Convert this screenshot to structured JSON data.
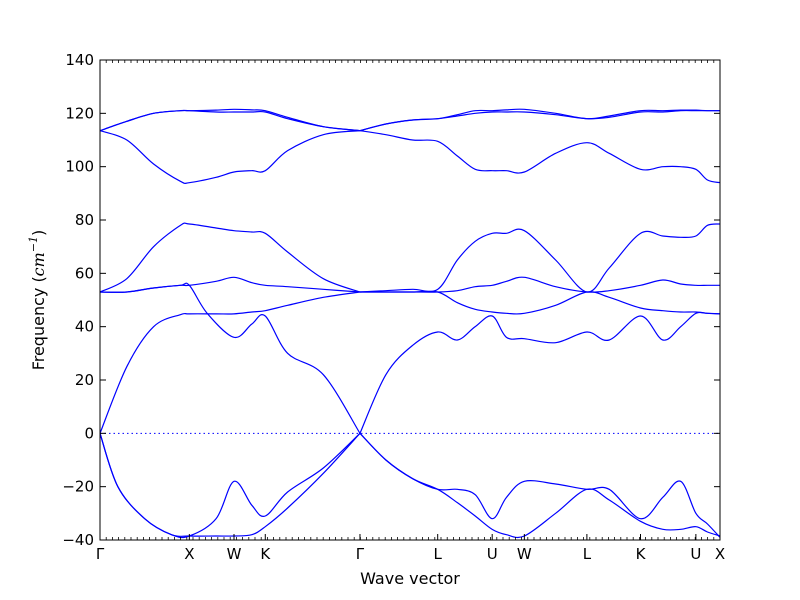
{
  "chart_data": {
    "type": "line",
    "xlabel": "Wave vector",
    "ylabel_text": "Frequency (",
    "ylabel_unit": "cm",
    "ylabel_exp": "−1",
    "ylabel_close": ")",
    "ylim": [
      -40,
      140
    ],
    "yticks": [
      -40,
      -20,
      0,
      20,
      40,
      60,
      80,
      100,
      120,
      140
    ],
    "ytick_labels": [
      "−40",
      "−20",
      "0",
      "20",
      "40",
      "60",
      "80",
      "100",
      "120",
      "140"
    ],
    "xlim": [
      0,
      6.94
    ],
    "high_symmetry_points": [
      {
        "label": "Γ",
        "x": 0.0
      },
      {
        "label": "X",
        "x": 1.0
      },
      {
        "label": "W",
        "x": 1.5
      },
      {
        "label": "K",
        "x": 1.85
      },
      {
        "label": "Γ",
        "x": 2.91
      },
      {
        "label": "L",
        "x": 3.78
      },
      {
        "label": "U",
        "x": 4.39
      },
      {
        "label": "W",
        "x": 4.75
      },
      {
        "label": "L",
        "x": 5.45
      },
      {
        "label": "K",
        "x": 6.05
      },
      {
        "label": "U",
        "x": 6.67
      },
      {
        "label": "X",
        "x": 6.94
      }
    ],
    "zero_line": true,
    "line_color": "#0000ff",
    "zero_line_color": "#0000ff",
    "series": [
      {
        "x": [
          0,
          0.2,
          0.5,
          0.8,
          1.0,
          1.3,
          1.5,
          1.7,
          1.85,
          2.1,
          2.5,
          2.91
        ],
        "values": [
          0,
          -20,
          -32,
          -38,
          -38.5,
          -38.5,
          -38.5,
          -38,
          -35,
          -28,
          -15,
          0
        ]
      },
      {
        "x": [
          2.91,
          3.2,
          3.5,
          3.78,
          4.0,
          4.2,
          4.39,
          4.55,
          4.75,
          5.1,
          5.45,
          5.7,
          6.05,
          6.3,
          6.5,
          6.67,
          6.8,
          6.94
        ],
        "values": [
          0,
          -10,
          -17,
          -21,
          -21,
          -23,
          -32,
          -24,
          -18,
          -19,
          -21,
          -21,
          -32,
          -24,
          -18,
          -30,
          -34,
          -39
        ]
      },
      {
        "x": [
          0,
          0.2,
          0.5,
          0.8,
          1.0,
          1.3,
          1.5,
          1.7,
          1.85,
          2.1,
          2.5,
          2.91
        ],
        "values": [
          0,
          -20,
          -32,
          -38,
          -38.5,
          -32,
          -18,
          -27,
          -31,
          -22,
          -13,
          0
        ]
      },
      {
        "x": [
          2.91,
          3.2,
          3.5,
          3.78,
          4.0,
          4.2,
          4.39,
          4.55,
          4.75,
          5.1,
          5.45,
          5.7,
          6.05,
          6.3,
          6.5,
          6.67,
          6.8,
          6.94
        ],
        "values": [
          0,
          -10,
          -17,
          -21,
          -26,
          -31,
          -36,
          -38,
          -38.5,
          -30,
          -21,
          -25,
          -33,
          -36,
          -36,
          -35,
          -37,
          -38.5
        ]
      },
      {
        "x": [
          0,
          0.3,
          0.6,
          0.9,
          1.0,
          1.3,
          1.5,
          1.7,
          1.85,
          2.1,
          2.5,
          2.91
        ],
        "values": [
          0,
          25,
          40,
          44.5,
          44.8,
          44.8,
          44.8,
          45.5,
          46,
          48,
          51,
          53
        ]
      },
      {
        "x": [
          2.91,
          3.2,
          3.5,
          3.78,
          4.0,
          4.2,
          4.39,
          4.55,
          4.75,
          5.1,
          5.45,
          5.7,
          6.05,
          6.3,
          6.5,
          6.67,
          6.8,
          6.94
        ],
        "values": [
          53,
          53,
          53,
          53,
          49,
          46.5,
          45.5,
          45,
          45,
          48,
          53,
          51,
          47,
          46,
          45.5,
          45.5,
          45,
          44.8
        ]
      },
      {
        "x": [
          0,
          0.3,
          0.6,
          0.9,
          1.0,
          1.2,
          1.5,
          1.7,
          1.85,
          2.1,
          2.5,
          2.91
        ],
        "values": [
          53,
          53,
          54.5,
          55.5,
          55.5,
          45,
          36,
          41,
          44,
          30,
          22,
          0
        ]
      },
      {
        "x": [
          2.91,
          3.2,
          3.5,
          3.78,
          4.0,
          4.2,
          4.39,
          4.55,
          4.75,
          5.1,
          5.45,
          5.7,
          6.05,
          6.3,
          6.5,
          6.67,
          6.8,
          6.94
        ],
        "values": [
          0,
          22,
          33,
          38,
          35,
          40,
          44,
          36,
          35.5,
          34,
          38,
          35,
          44,
          35,
          40,
          45,
          45,
          44.8
        ]
      },
      {
        "x": [
          0,
          0.3,
          0.6,
          0.9,
          1.0,
          1.3,
          1.5,
          1.7,
          1.85,
          2.1,
          2.5,
          2.91
        ],
        "values": [
          53,
          53,
          54.5,
          55.5,
          55.5,
          57,
          58.5,
          56.5,
          55.5,
          55,
          54,
          53
        ]
      },
      {
        "x": [
          2.91,
          3.2,
          3.5,
          3.78,
          4.0,
          4.2,
          4.39,
          4.55,
          4.75,
          5.1,
          5.45,
          5.7,
          6.05,
          6.3,
          6.5,
          6.67,
          6.8,
          6.94
        ],
        "values": [
          53,
          53,
          53,
          53,
          53.5,
          55,
          55.5,
          57,
          58.5,
          55,
          53,
          53.5,
          55.5,
          57.5,
          56,
          55.5,
          55.5,
          55.5
        ]
      },
      {
        "x": [
          0,
          0.3,
          0.6,
          0.9,
          1.0,
          1.3,
          1.5,
          1.7,
          1.85,
          2.1,
          2.5,
          2.91
        ],
        "values": [
          53,
          58,
          70,
          78,
          78.5,
          77,
          76,
          75.5,
          75,
          68,
          58,
          53
        ]
      },
      {
        "x": [
          2.91,
          3.2,
          3.5,
          3.78,
          4.0,
          4.2,
          4.39,
          4.55,
          4.75,
          5.1,
          5.45,
          5.7,
          6.05,
          6.3,
          6.5,
          6.67,
          6.8,
          6.94
        ],
        "values": [
          53,
          53.5,
          54,
          54,
          65,
          72,
          75,
          75,
          76,
          65,
          53,
          62,
          75,
          74,
          73.5,
          74,
          78,
          78.5
        ]
      },
      {
        "x": [
          0,
          0.3,
          0.6,
          0.9,
          1.0,
          1.3,
          1.5,
          1.7,
          1.85,
          2.1,
          2.5,
          2.91
        ],
        "values": [
          113.5,
          110,
          101,
          94.5,
          94,
          96,
          98,
          98.5,
          98.5,
          106,
          112,
          113.5
        ]
      },
      {
        "x": [
          2.91,
          3.2,
          3.5,
          3.78,
          4.0,
          4.2,
          4.39,
          4.55,
          4.75,
          5.1,
          5.45,
          5.7,
          6.05,
          6.3,
          6.5,
          6.67,
          6.8,
          6.94
        ],
        "values": [
          113.5,
          112,
          110,
          109.5,
          104,
          99,
          98.5,
          98.5,
          98,
          105,
          109,
          105,
          99,
          100,
          100,
          99,
          95,
          94
        ]
      },
      {
        "x": [
          0,
          0.3,
          0.6,
          0.9,
          1.0,
          1.3,
          1.5,
          1.7,
          1.85,
          2.1,
          2.5,
          2.91
        ],
        "values": [
          113.5,
          117,
          120,
          121,
          121,
          120.5,
          120.5,
          120.5,
          120.5,
          118,
          115,
          113.5
        ]
      },
      {
        "x": [
          2.91,
          3.2,
          3.5,
          3.78,
          4.0,
          4.2,
          4.39,
          4.55,
          4.75,
          5.1,
          5.45,
          5.7,
          6.05,
          6.3,
          6.5,
          6.67,
          6.8,
          6.94
        ],
        "values": [
          113.5,
          116,
          117.5,
          118,
          119,
          120,
          120.5,
          120.5,
          120.5,
          119.5,
          118,
          118.5,
          120.5,
          120.5,
          121,
          121,
          121,
          121
        ]
      },
      {
        "x": [
          0,
          0.3,
          0.6,
          0.9,
          1.0,
          1.3,
          1.5,
          1.7,
          1.85,
          2.1,
          2.5,
          2.91
        ],
        "values": [
          113.5,
          117,
          120,
          121,
          121,
          121.2,
          121.5,
          121.3,
          121,
          118.5,
          115,
          113.5
        ]
      },
      {
        "x": [
          2.91,
          3.2,
          3.5,
          3.78,
          4.0,
          4.2,
          4.39,
          4.55,
          4.75,
          5.1,
          5.45,
          5.7,
          6.05,
          6.3,
          6.5,
          6.67,
          6.8,
          6.94
        ],
        "values": [
          113.5,
          116,
          117.5,
          118,
          119.5,
          121,
          121,
          121.3,
          121.5,
          120,
          118,
          119,
          121,
          121,
          121.2,
          121.2,
          121,
          121
        ]
      }
    ]
  }
}
